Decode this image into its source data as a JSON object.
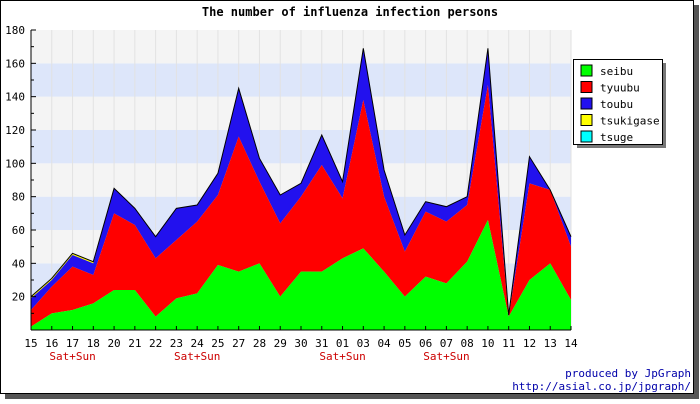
{
  "chart_data": {
    "type": "area",
    "stacked": true,
    "title": "The number of influenza infection persons",
    "xlabel": "",
    "ylabel": "",
    "ylim": [
      0,
      180
    ],
    "yticks": [
      20,
      40,
      60,
      80,
      100,
      120,
      140,
      160,
      180
    ],
    "grid": true,
    "legend_position": "right",
    "categories": [
      "15",
      "16",
      "17",
      "18",
      "20",
      "21",
      "22",
      "23",
      "24",
      "25",
      "27",
      "28",
      "29",
      "30",
      "31",
      "01",
      "03",
      "04",
      "05",
      "06",
      "07",
      "08",
      "10",
      "11",
      "12",
      "13",
      "14"
    ],
    "weekend_labels": [
      {
        "category": "17",
        "text": "Sat+Sun"
      },
      {
        "category": "24",
        "text": "Sat+Sun"
      },
      {
        "category": "01",
        "text": "Sat+Sun"
      },
      {
        "category": "07",
        "text": "Sat+Sun"
      }
    ],
    "series": [
      {
        "name": "seibu",
        "color": "#00ff00",
        "values": [
          2,
          10,
          12,
          16,
          24,
          24,
          8,
          19,
          22,
          39,
          35,
          40,
          20,
          35,
          35,
          43,
          49,
          35,
          20,
          32,
          28,
          41,
          66,
          8,
          30,
          40,
          18
        ]
      },
      {
        "name": "tyuubu",
        "color": "#ff0000",
        "values": [
          10,
          16,
          26,
          17,
          46,
          39,
          35,
          35,
          43,
          42,
          81,
          49,
          44,
          45,
          64,
          36,
          89,
          45,
          27,
          39,
          37,
          34,
          81,
          0,
          58,
          44,
          32
        ]
      },
      {
        "name": "toubu",
        "color": "#2211ee",
        "values": [
          7,
          4,
          7,
          7,
          15,
          10,
          13,
          19,
          10,
          13,
          29,
          14,
          17,
          8,
          18,
          10,
          31,
          16,
          10,
          6,
          9,
          5,
          22,
          1,
          16,
          0,
          6
        ]
      },
      {
        "name": "tsukigase",
        "color": "#ffff00",
        "values": [
          1,
          1,
          1,
          1,
          0,
          0,
          0,
          0,
          0,
          0,
          0,
          0,
          0,
          0,
          0,
          0,
          0,
          0,
          0,
          0,
          0,
          0,
          0,
          0,
          0,
          0,
          0
        ]
      },
      {
        "name": "tsuge",
        "color": "#00ffff",
        "values": [
          0,
          0,
          0,
          0,
          0,
          0,
          0,
          0,
          0,
          0,
          0,
          0,
          0,
          0,
          0,
          0,
          0,
          0,
          0,
          0,
          0,
          0,
          0,
          0,
          0,
          0,
          0
        ]
      }
    ]
  },
  "footer": {
    "credit": "produced by JpGraph",
    "url": "http://asial.co.jp/jpgraph/"
  },
  "colors": {
    "band_light": "#f4f4f4",
    "band_blue": "#dde6fa",
    "weekend_label": "#cc0000",
    "footer_text": "#0000aa",
    "outline": "#000000"
  }
}
